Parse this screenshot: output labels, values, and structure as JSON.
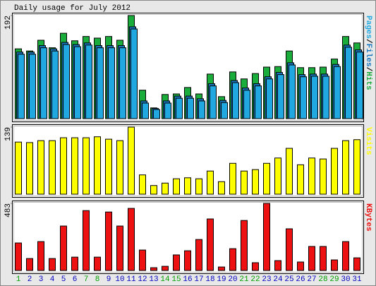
{
  "chart_data": [
    {
      "type": "bar",
      "title": "Daily usage for July 2012",
      "ylim": [
        0,
        192
      ],
      "yticks": [
        192
      ],
      "legend_separator": "/",
      "series": [
        {
          "name": "Pages",
          "color": "#22a8e0",
          "values": [
            120,
            120,
            132,
            126,
            138,
            134,
            137,
            132,
            132,
            132,
            167,
            29,
            17,
            29,
            38,
            38,
            33,
            61,
            30,
            67,
            53,
            61,
            74,
            82,
            100,
            78,
            79,
            79,
            97,
            133,
            124
          ]
        },
        {
          "name": "Files",
          "color": "#1a78c2",
          "values": [
            124,
            124,
            136,
            130,
            142,
            138,
            141,
            136,
            136,
            136,
            171,
            33,
            19,
            33,
            42,
            42,
            37,
            65,
            34,
            71,
            57,
            65,
            78,
            86,
            104,
            82,
            83,
            83,
            101,
            137,
            128
          ]
        },
        {
          "name": "Hits",
          "color": "#1aad3c",
          "values": [
            130,
            126,
            146,
            132,
            159,
            145,
            153,
            150,
            153,
            146,
            192,
            53,
            20,
            45,
            46,
            58,
            46,
            83,
            41,
            87,
            74,
            84,
            96,
            97,
            126,
            95,
            95,
            96,
            111,
            153,
            141
          ]
        }
      ]
    },
    {
      "type": "bar",
      "ylim": [
        0,
        139
      ],
      "yticks": [
        139
      ],
      "series": [
        {
          "name": "Visits",
          "color": "#ffff00",
          "values": [
            108,
            107,
            111,
            111,
            117,
            117,
            117,
            119,
            114,
            111,
            139,
            40,
            18,
            23,
            32,
            34,
            32,
            48,
            26,
            64,
            48,
            51,
            64,
            75,
            95,
            61,
            75,
            73,
            95,
            111,
            113
          ]
        }
      ]
    },
    {
      "type": "bar",
      "ylim": [
        0,
        483
      ],
      "yticks": [
        483
      ],
      "categories": [
        "1",
        "2",
        "3",
        "4",
        "5",
        "6",
        "7",
        "8",
        "9",
        "10",
        "11",
        "12",
        "13",
        "14",
        "15",
        "16",
        "17",
        "18",
        "19",
        "20",
        "21",
        "22",
        "23",
        "24",
        "25",
        "26",
        "27",
        "28",
        "29",
        "30",
        "31"
      ],
      "category_colors": [
        "#00a000",
        "#0000c0",
        "#0000c0",
        "#0000c0",
        "#0000c0",
        "#0000c0",
        "#00a000",
        "#00a000",
        "#0000c0",
        "#0000c0",
        "#0000c0",
        "#0000c0",
        "#0000c0",
        "#00a000",
        "#00a000",
        "#0000c0",
        "#0000c0",
        "#0000c0",
        "#0000c0",
        "#0000c0",
        "#00a000",
        "#00a000",
        "#0000c0",
        "#0000c0",
        "#0000c0",
        "#0000c0",
        "#0000c0",
        "#00a000",
        "#00a000",
        "#0000c0",
        "#0000c0"
      ],
      "series": [
        {
          "name": "KBytes",
          "color": "#ee1111",
          "values": [
            198,
            86,
            208,
            86,
            320,
            96,
            431,
            96,
            421,
            320,
            447,
            147,
            20,
            30,
            112,
            142,
            223,
            371,
            25,
            157,
            360,
            56,
            483,
            71,
            300,
            61,
            173,
            173,
            76,
            208,
            91
          ]
        }
      ]
    }
  ]
}
